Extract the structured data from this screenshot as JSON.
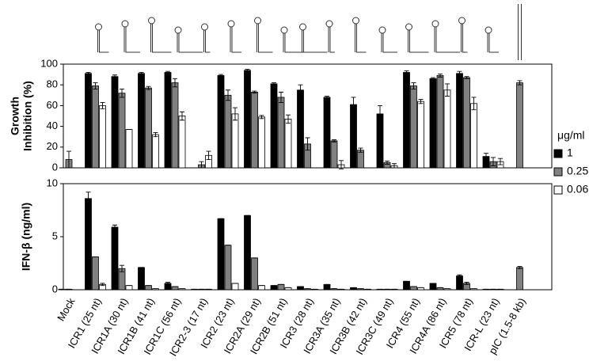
{
  "chart_data": [
    {
      "type": "bar",
      "ylabel": [
        "Growth",
        "Inhibition (%)"
      ],
      "ylim": [
        0,
        100
      ],
      "yticks": [
        0,
        20,
        40,
        60,
        80,
        100
      ],
      "legend_title": "μg/ml",
      "series": [
        {
          "name": "1",
          "color": "#000000",
          "values": [
            0,
            91,
            88,
            91,
            92,
            0,
            89,
            94,
            81,
            75,
            68,
            61,
            52,
            92,
            86,
            91,
            11,
            0
          ],
          "errors": [
            0,
            1,
            1.5,
            1,
            1,
            0,
            1,
            1,
            1,
            5,
            1,
            7,
            8,
            1.5,
            1,
            2,
            3,
            0
          ]
        },
        {
          "name": "0.25",
          "color": "#808080",
          "values": [
            8,
            79,
            72,
            77,
            82,
            3,
            70,
            73,
            68,
            23,
            26,
            17,
            5,
            79,
            89,
            87,
            6,
            82
          ],
          "errors": [
            8,
            3,
            4,
            1.5,
            4,
            3,
            5,
            1,
            5,
            6,
            1,
            2,
            1.5,
            3,
            1.5,
            1,
            4,
            2
          ]
        },
        {
          "name": "0.0625",
          "color": "#ffffff",
          "values": [
            0,
            60,
            37,
            32,
            50,
            12,
            52,
            49,
            47,
            0,
            3,
            0,
            2,
            64,
            75,
            62,
            6,
            0
          ],
          "errors": [
            0,
            3,
            0,
            2,
            4,
            4,
            6,
            1.5,
            4,
            0,
            4,
            0,
            2,
            2,
            6,
            6,
            3,
            0
          ]
        }
      ]
    },
    {
      "type": "bar",
      "ylabel": "IFN-β (ng/ml)",
      "ylim": [
        0,
        10
      ],
      "yticks": [
        0,
        5,
        10
      ],
      "categories": [
        "Mock",
        "ICR1 (25 nt)",
        "ICR1A (30 nt)",
        "ICR1B (41 nt)",
        "ICR1C (56 nt)",
        "ICR2-3 (17 nt)",
        "ICR2 (23 nt)",
        "ICR2A (29 nt)",
        "ICR2B (51 nt)",
        "ICR3 (28 nt)",
        "ICR3A (35 nt)",
        "ICR3B (42 nt)",
        "ICR3C (49 nt)",
        "ICR4 (55 nt)",
        "ICR4A (86 nt)",
        "ICR5 (78 nt)",
        "ICR-L (23 nt)",
        "pIC (1.5-8 kb)"
      ],
      "series": [
        {
          "color": "#000000",
          "values": [
            0.05,
            8.6,
            5.9,
            2.1,
            0.6,
            0.05,
            6.7,
            7.0,
            0.4,
            0.3,
            0.5,
            0.2,
            0.05,
            0.8,
            0.6,
            1.3,
            0.05,
            0
          ],
          "errors": [
            0,
            0.6,
            0.2,
            0,
            0.1,
            0,
            0,
            0,
            0,
            0,
            0,
            0,
            0,
            0,
            0,
            0.1,
            0,
            0
          ]
        },
        {
          "color": "#808080",
          "values": [
            0.05,
            3.1,
            2.0,
            0.4,
            0.3,
            0.05,
            4.2,
            3.0,
            0.5,
            0.1,
            0.1,
            0.1,
            0.05,
            0.3,
            0.2,
            0.6,
            0.05,
            2.1
          ],
          "errors": [
            0,
            0,
            0.3,
            0,
            0,
            0,
            0,
            0,
            0,
            0,
            0,
            0,
            0,
            0,
            0,
            0.1,
            0,
            0.1
          ]
        },
        {
          "color": "#ffffff",
          "values": [
            0,
            0.5,
            0.4,
            0.1,
            0.1,
            0.05,
            0.6,
            0.4,
            0.2,
            0.05,
            0.05,
            0.05,
            0.05,
            0.2,
            0.1,
            0.1,
            0.05,
            0
          ],
          "errors": [
            0,
            0.1,
            0,
            0,
            0,
            0,
            0,
            0,
            0,
            0,
            0,
            0,
            0,
            0,
            0,
            0,
            0,
            0
          ]
        }
      ]
    }
  ]
}
